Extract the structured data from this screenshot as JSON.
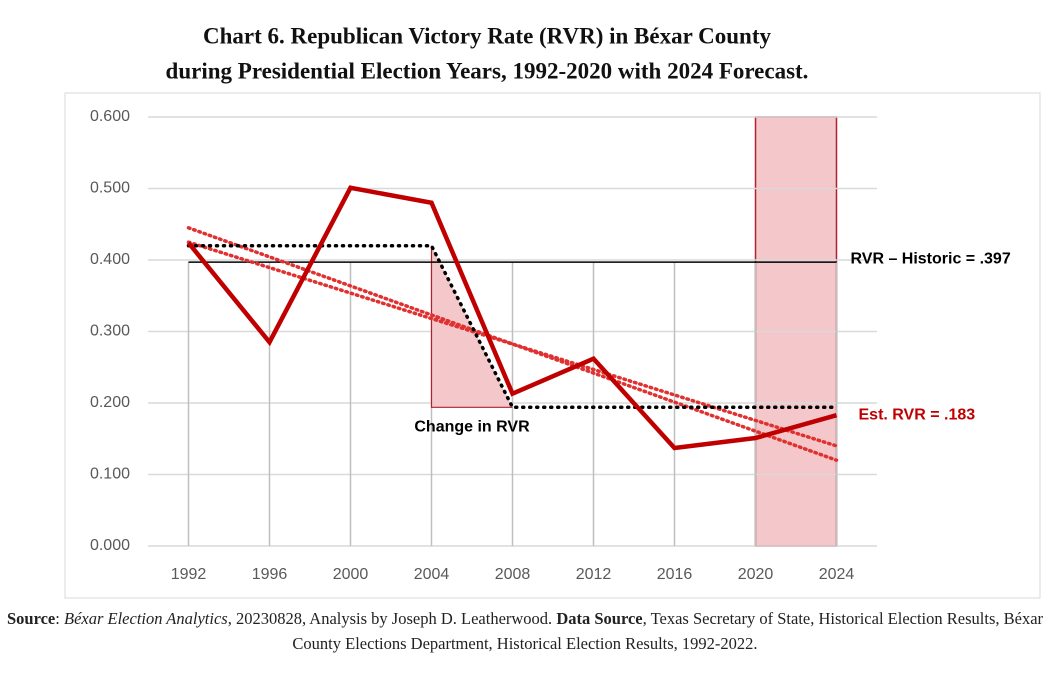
{
  "chart_data": {
    "type": "line",
    "title": [
      "Chart 6. Republican Victory Rate (RVR) in Béxar County",
      "during Presidential Election Years, 1992-2020 with 2024 Forecast."
    ],
    "x": [
      1992,
      1996,
      2000,
      2004,
      2008,
      2012,
      2016,
      2020,
      2024
    ],
    "xlim": [
      1990,
      2026
    ],
    "xticks": [
      1992,
      1996,
      2000,
      2004,
      2008,
      2012,
      2016,
      2020,
      2024
    ],
    "ylim": [
      0,
      0.6
    ],
    "yticks": [
      {
        "value": 0,
        "label": "0.000"
      },
      {
        "value": 0.1,
        "label": "0.100"
      },
      {
        "value": 0.2,
        "label": "0.200"
      },
      {
        "value": 0.3,
        "label": "0.300"
      },
      {
        "value": 0.4,
        "label": "0.400"
      },
      {
        "value": 0.5,
        "label": "0.500"
      },
      {
        "value": 0.6,
        "label": "0.600"
      }
    ],
    "grid": true,
    "series": [
      {
        "color": "#c00000",
        "values": [
          0.424,
          0.285,
          0.501,
          0.48,
          0.213,
          0.262,
          0.137,
          0.151,
          0.183
        ]
      }
    ],
    "reference_line": {
      "value": 0.397,
      "label": "RVR – Historic = .397",
      "color": "#000000"
    },
    "step_line": {
      "x": [
        1992,
        2004,
        2008,
        2024
      ],
      "values": [
        0.42,
        0.42,
        0.194,
        0.194
      ],
      "color": "#000000"
    },
    "trend_lines": [
      {
        "x": [
          1992,
          2024
        ],
        "values": [
          0.445,
          0.12
        ],
        "color": "#e03030"
      },
      {
        "x": [
          1992,
          2024
        ],
        "values": [
          0.425,
          0.14
        ],
        "color": "#e03030"
      }
    ],
    "change_region": {
      "x": [
        2004,
        2008
      ],
      "values": [
        0.42,
        0.194
      ],
      "label": "Change in RVR"
    },
    "forecast_region": {
      "x": [
        2020,
        2024
      ],
      "values": [
        0,
        0.6
      ]
    },
    "forecast_label": "Est. RVR = .183",
    "source": [
      "Source",
      ": ",
      "Béxar Election Analytics",
      ", 20230828, Analysis by Joseph D. Leatherwood. ",
      "Data Source",
      ", Texas Secretary of State, Historical Election Results, Béxar County Elections Department, Historical Election Results, 1992-2022."
    ]
  }
}
